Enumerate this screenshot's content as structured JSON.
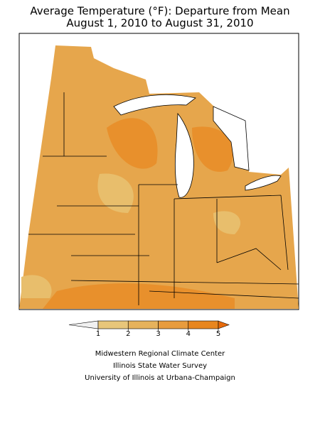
{
  "header": {
    "title_lines": [
      "Average Temperature (°F): Departure from Mean",
      "August 1, 2010 to August 31, 2010"
    ]
  },
  "legend": {
    "ticks": [
      1,
      2,
      3,
      4,
      5
    ],
    "colors": [
      "#f0f0f0",
      "#e8c67a",
      "#e6b25c",
      "#e89c3e",
      "#e8861f",
      "#e86c0c"
    ]
  },
  "footer": {
    "lines": [
      "Midwestern Regional Climate Center",
      "Illinois State Water Survey",
      "University of Illinois at Urbana-Champaign"
    ]
  }
}
